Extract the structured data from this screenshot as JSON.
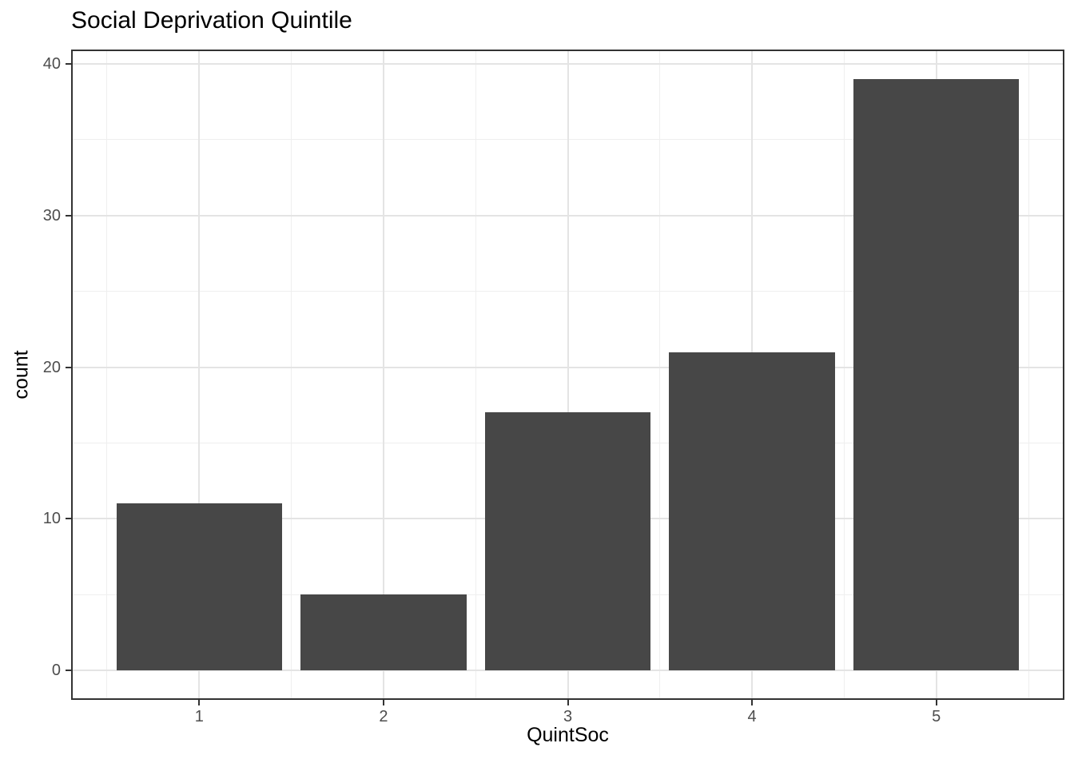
{
  "chart_data": {
    "type": "bar",
    "title": "Social Deprivation Quintile",
    "xlabel": "QuintSoc",
    "ylabel": "count",
    "x": [
      1,
      2,
      3,
      4,
      5
    ],
    "categories": [
      "1",
      "2",
      "3",
      "4",
      "5"
    ],
    "values": [
      11,
      5,
      17,
      21,
      39
    ],
    "bar_width": 0.9,
    "xlim": [
      0.305,
      5.695
    ],
    "ylim": [
      -1.95,
      40.95
    ],
    "x_major_ticks": [
      1,
      2,
      3,
      4,
      5
    ],
    "x_minor_ticks": [
      0.5,
      1.5,
      2.5,
      3.5,
      4.5,
      5.5
    ],
    "y_major_ticks": [
      0,
      10,
      20,
      30,
      40
    ],
    "y_minor_ticks": [
      5,
      15,
      25,
      35
    ],
    "grid": true,
    "legend_position": "none",
    "colors": {
      "bar_fill": "#474747",
      "panel_background": "#ffffff",
      "panel_border": "#333333",
      "grid_major": "#e4e4e4",
      "grid_minor": "#efefef",
      "tick_mark": "#333333",
      "axis_text": "#4d4d4d",
      "title_text": "#000000"
    }
  }
}
